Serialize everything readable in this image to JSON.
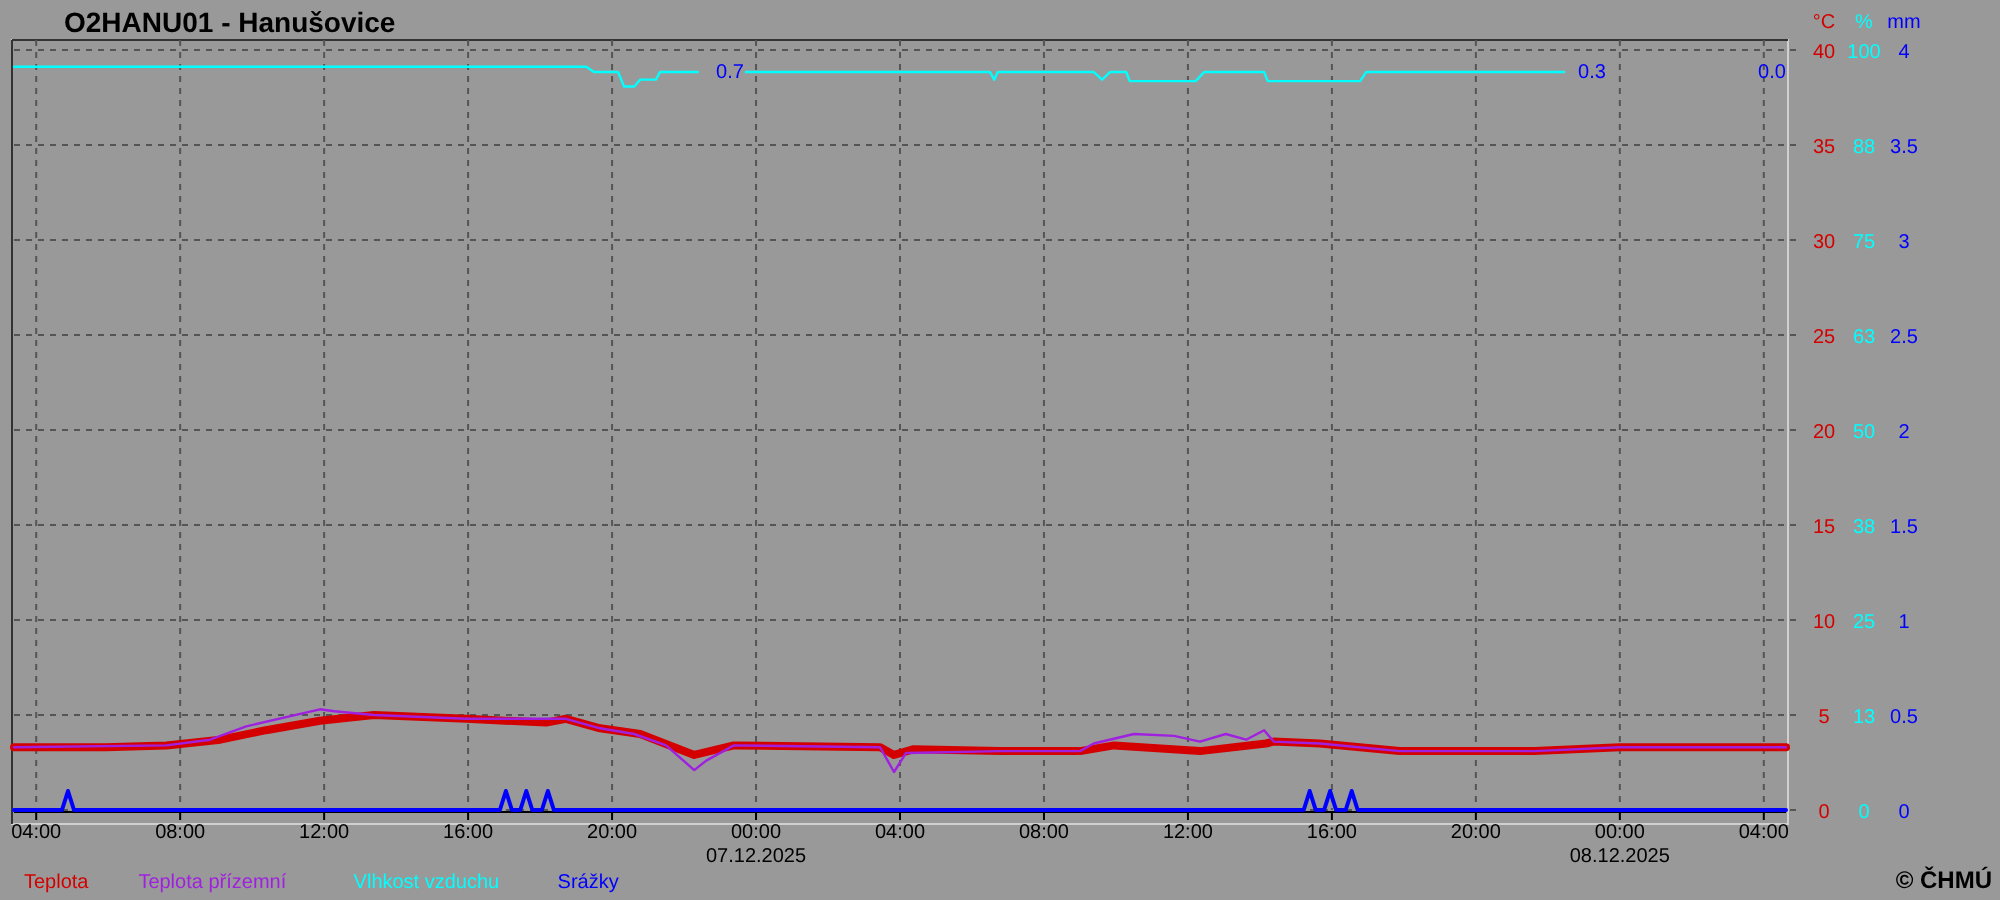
{
  "chart_data": {
    "type": "line",
    "title": "O2HANU01 - Hanušovice",
    "ylabel": "°C",
    "y2label": "%",
    "y3label": "mm",
    "xlim": [
      "2025-12-06T03:23",
      "2025-12-08T04:37"
    ],
    "xticks": [
      {
        "value": "2025-12-06T04:00",
        "label": "04:00"
      },
      {
        "value": "2025-12-06T08:00",
        "label": "08:00"
      },
      {
        "value": "2025-12-06T12:00",
        "label": "12:00"
      },
      {
        "value": "2025-12-06T16:00",
        "label": "16:00"
      },
      {
        "value": "2025-12-06T20:00",
        "label": "20:00"
      },
      {
        "value": "2025-12-07T00:00",
        "label": "00:00\n07.12.2025"
      },
      {
        "value": "2025-12-07T04:00",
        "label": "04:00"
      },
      {
        "value": "2025-12-07T08:00",
        "label": "08:00"
      },
      {
        "value": "2025-12-07T12:00",
        "label": "12:00"
      },
      {
        "value": "2025-12-07T16:00",
        "label": "16:00"
      },
      {
        "value": "2025-12-07T20:00",
        "label": "20:00"
      },
      {
        "value": "2025-12-08T00:00",
        "label": "00:00\n08.12.2025"
      },
      {
        "value": "2025-12-08T04:00",
        "label": "04:00"
      }
    ],
    "ylim": [
      0,
      40
    ],
    "yticks": [
      0,
      5,
      10,
      15,
      20,
      25,
      30,
      35,
      40
    ],
    "y2lim": [
      0,
      100
    ],
    "y2ticks": [
      0,
      {
        "value": 12.5,
        "label": "13"
      },
      25,
      {
        "value": 37.5,
        "label": "38"
      },
      50,
      {
        "value": 62.5,
        "label": "63"
      },
      75,
      {
        "value": 87.5,
        "label": "88"
      },
      100
    ],
    "y3lim": [
      0,
      4
    ],
    "y3ticks": [
      0,
      0.5,
      1,
      1.5,
      2,
      2.5,
      3,
      3.5,
      4
    ],
    "grid": true,
    "legend": "bottom left",
    "series": [
      {
        "name": "Teplota",
        "color": "#d40000",
        "x": [
          "2025-12-06T03:23",
          "2025-12-06T05:56",
          "2025-12-06T07:37",
          "2025-12-06T09:07",
          "2025-12-06T10:23",
          "2025-12-06T11:53",
          "2025-12-06T13:23",
          "2025-12-06T15:57",
          "2025-12-06T18:10",
          "2025-12-06T18:43",
          "2025-12-06T19:40",
          "2025-12-06T20:47",
          "2025-12-06T22:17",
          "2025-12-06T23:23",
          "2025-12-07T03:27",
          "2025-12-07T03:50",
          "2025-12-07T04:23",
          "2025-12-07T06:47",
          "2025-12-07T09:00",
          "2025-12-07T09:57",
          "2025-12-07T12:20",
          "2025-12-07T14:10",
          "2025-12-07T14:23",
          "2025-12-07T15:40",
          "2025-12-07T17:53",
          "2025-12-07T21:37",
          "2025-12-08T00:00",
          "2025-12-08T04:37"
        ],
        "values": [
          3.3,
          3.3,
          3.4,
          3.7,
          4.2,
          4.7,
          5.0,
          4.8,
          4.6,
          4.8,
          4.3,
          4.0,
          2.9,
          3.4,
          3.3,
          2.9,
          3.2,
          3.1,
          3.1,
          3.4,
          3.1,
          3.5,
          3.6,
          3.5,
          3.1,
          3.1,
          3.3,
          3.3
        ]
      },
      {
        "name": "Teplota přízemní",
        "color": "#a020e0",
        "x": [
          "2025-12-06T03:23",
          "2025-12-06T07:37",
          "2025-12-06T08:50",
          "2025-12-06T09:50",
          "2025-12-06T11:53",
          "2025-12-06T12:17",
          "2025-12-06T13:23",
          "2025-12-06T15:57",
          "2025-12-06T18:43",
          "2025-12-06T19:40",
          "2025-12-06T20:37",
          "2025-12-06T21:30",
          "2025-12-06T22:17",
          "2025-12-06T22:37",
          "2025-12-06T23:23",
          "2025-12-07T03:27",
          "2025-12-07T03:50",
          "2025-12-07T04:10",
          "2025-12-07T06:47",
          "2025-12-07T09:00",
          "2025-12-07T09:23",
          "2025-12-07T10:30",
          "2025-12-07T11:37",
          "2025-12-07T12:20",
          "2025-12-07T13:03",
          "2025-12-07T13:37",
          "2025-12-07T14:07",
          "2025-12-07T14:23",
          "2025-12-07T15:40",
          "2025-12-07T17:53",
          "2025-12-07T21:37",
          "2025-12-08T00:00",
          "2025-12-08T04:37"
        ],
        "values": [
          3.3,
          3.4,
          3.7,
          4.4,
          5.3,
          5.2,
          5.0,
          4.8,
          4.8,
          4.3,
          4.0,
          3.4,
          2.1,
          2.6,
          3.4,
          3.3,
          2.0,
          3.0,
          3.1,
          3.1,
          3.5,
          4.0,
          3.9,
          3.6,
          4.0,
          3.7,
          4.2,
          3.6,
          3.5,
          3.1,
          3.1,
          3.3,
          3.3
        ]
      },
      {
        "name": "Vlhkost vzduchu",
        "color": "#00ffff",
        "axis": "y2",
        "x": [
          "2025-12-06T03:23",
          "2025-12-06T19:17",
          "2025-12-06T19:30",
          "2025-12-06T20:10",
          "2025-12-06T20:20",
          "2025-12-06T20:37",
          "2025-12-06T20:47",
          "2025-12-06T21:13",
          "2025-12-06T21:20",
          "2025-12-06T22:23",
          "2025-12-06T23:00",
          "2025-12-06T23:43",
          "2025-12-07T06:30",
          "2025-12-07T06:37",
          "2025-12-07T06:43",
          "2025-12-07T09:23",
          "2025-12-07T09:37",
          "2025-12-07T09:50",
          "2025-12-07T10:17",
          "2025-12-07T10:23",
          "2025-12-07T12:13",
          "2025-12-07T12:27",
          "2025-12-07T14:07",
          "2025-12-07T14:13",
          "2025-12-07T16:47",
          "2025-12-07T16:57",
          "2025-12-07T22:27"
        ],
        "values": [
          97.8,
          97.8,
          97.1,
          97.1,
          95.2,
          95.2,
          96.1,
          96.1,
          97.1,
          97.1,
          null,
          97.1,
          97.1,
          96.1,
          97.1,
          97.1,
          96.1,
          97.1,
          97.1,
          95.9,
          95.9,
          97.1,
          97.1,
          95.9,
          95.9,
          97.1,
          97.1
        ]
      },
      {
        "name": "Srážky",
        "color": "#0000ff",
        "axis": "y3",
        "x": [
          "2025-12-06T03:23",
          "2025-12-06T04:43",
          "2025-12-06T04:53",
          "2025-12-06T05:03",
          "2025-12-06T16:53",
          "2025-12-06T17:03",
          "2025-12-06T17:13",
          "2025-12-06T17:27",
          "2025-12-06T17:37",
          "2025-12-06T17:47",
          "2025-12-06T18:03",
          "2025-12-06T18:13",
          "2025-12-06T18:23",
          "2025-12-07T15:13",
          "2025-12-07T15:23",
          "2025-12-07T15:33",
          "2025-12-07T15:47",
          "2025-12-07T15:57",
          "2025-12-07T16:07",
          "2025-12-07T16:23",
          "2025-12-07T16:33",
          "2025-12-07T16:43",
          "2025-12-08T04:37"
        ],
        "values": [
          0,
          0,
          0.1,
          0,
          0,
          0.1,
          0,
          0,
          0.1,
          0,
          0,
          0.1,
          0,
          0,
          0.1,
          0,
          0,
          0.1,
          0,
          0,
          0.1,
          0,
          0
        ]
      }
    ],
    "annotations": [
      "0.7",
      "0.3",
      "0.0",
      "© ČHMÚ"
    ]
  }
}
